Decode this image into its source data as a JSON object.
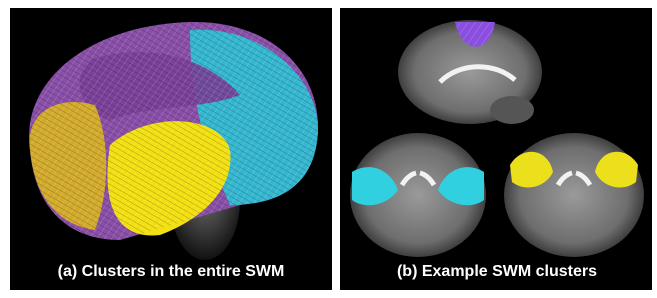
{
  "figure": {
    "panels": [
      {
        "caption": "(a) Clusters in the entire SWM"
      },
      {
        "caption": "(b) Example SWM clusters"
      }
    ]
  }
}
